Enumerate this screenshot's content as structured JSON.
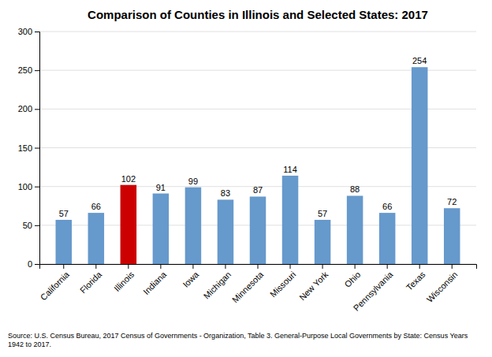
{
  "chart_data": {
    "type": "bar",
    "title": "Comparison of Counties in Illinois and Selected States: 2017",
    "categories": [
      "California",
      "Florida",
      "Illinois",
      "Indiana",
      "Iowa",
      "Michigan",
      "Minnesota",
      "Missouri",
      "New York",
      "Ohio",
      "Pennsylvania",
      "Texas",
      "Wisconsin"
    ],
    "values": [
      57,
      66,
      102,
      91,
      99,
      83,
      87,
      114,
      57,
      88,
      66,
      254,
      72
    ],
    "colors": [
      "#6699cc",
      "#6699cc",
      "#cc0000",
      "#6699cc",
      "#6699cc",
      "#6699cc",
      "#6699cc",
      "#6699cc",
      "#6699cc",
      "#6699cc",
      "#6699cc",
      "#6699cc",
      "#6699cc"
    ],
    "ylim": [
      0,
      300
    ],
    "yticks": [
      0,
      50,
      100,
      150,
      200,
      250,
      300
    ],
    "grid": true,
    "data_labels": true,
    "source": "Source: U.S. Census Bureau, 2017 Census of Governments - Organization, Table 3. General-Purpose Local Governments by State: Census Years 1942 to 2017."
  }
}
